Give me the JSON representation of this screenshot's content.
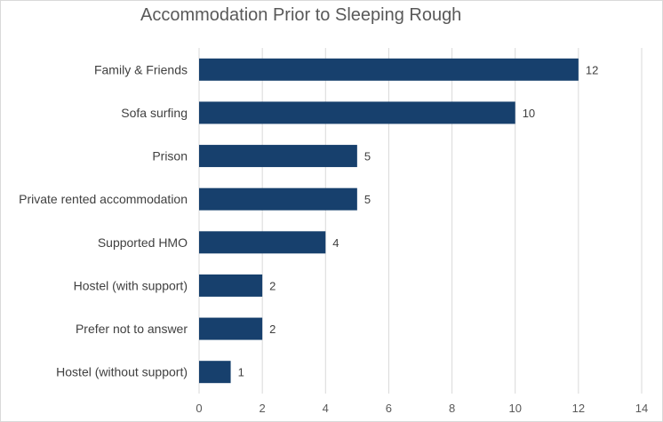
{
  "chart_data": {
    "type": "bar",
    "orientation": "horizontal",
    "title": "Accommodation Prior to Sleeping Rough",
    "categories": [
      "Family & Friends",
      "Sofa surfing",
      "Prison",
      "Private rented accommodation",
      "Supported HMO",
      "Hostel (with support)",
      "Prefer not to answer",
      "Hostel (without support)"
    ],
    "values": [
      12,
      10,
      5,
      5,
      4,
      2,
      2,
      1
    ],
    "xlim": [
      0,
      14
    ],
    "xticks": [
      0,
      2,
      4,
      6,
      8,
      10,
      12,
      14
    ],
    "xlabel": "",
    "ylabel": "",
    "grid": "vertical",
    "legend": "none",
    "bar_color": "#17406D",
    "grid_color": "#d9d9d9",
    "data_labels": true
  }
}
